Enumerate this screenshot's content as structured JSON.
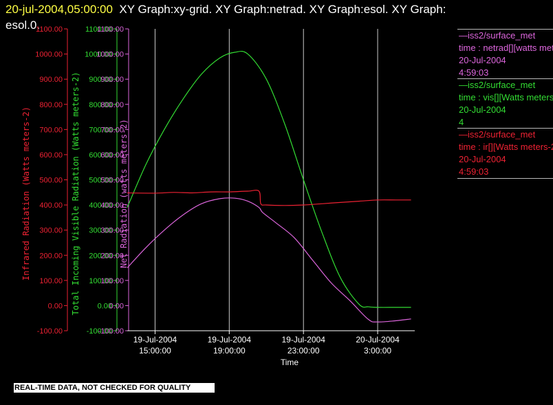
{
  "header": {
    "timestamp": "20-jul-2004,05:00:00",
    "graph_titles": "XY Graph:xy-grid.  XY Graph:netrad.  XY Graph:esol.  XY Graph:",
    "graph_titles_cont": "esol.0."
  },
  "legend": [
    {
      "source": "—iss2/surface_met",
      "variable": "time : netrad[][watts meters-2]",
      "date": "20-Jul-2004",
      "time": "4:59:03",
      "color": "#dd66dd"
    },
    {
      "source": "—iss2/surface_met",
      "variable": "time : vis[][Watts meters-2]",
      "date": "20-Jul-2004",
      "time": "4",
      "color": "#33dd33"
    },
    {
      "source": "—iss2/surface_met",
      "variable": "time : ir[][Watts meters-2]",
      "date": "20-Jul-2004",
      "time": "4:59:03",
      "color": "#ee2233"
    }
  ],
  "footer": {
    "text": "REAL-TIME DATA, NOT CHECKED FOR QUALITY"
  },
  "chart_data": {
    "type": "line",
    "xlabel": "Time",
    "x_ticks": [
      {
        "line1": "19-Jul-2004",
        "line2": "15:00:00",
        "hours": 0
      },
      {
        "line1": "19-Jul-2004",
        "line2": "19:00:00",
        "hours": 4
      },
      {
        "line1": "19-Jul-2004",
        "line2": "23:00:00",
        "hours": 8
      },
      {
        "line1": "20-Jul-2004",
        "line2": "3:00:00",
        "hours": 12
      }
    ],
    "xlim_hours": [
      -1.5,
      14.0
    ],
    "xlim_time": [
      "19-Jul-2004 13:30:00",
      "20-Jul-2004 5:00:00"
    ],
    "ylim": [
      -100,
      1100
    ],
    "y_ticks": [
      "-100.00",
      "0.00",
      "100.00",
      "200.00",
      "300.00",
      "400.00",
      "500.00",
      "600.00",
      "700.00",
      "800.00",
      "900.00",
      "1000.00",
      "1100.00"
    ],
    "axes": [
      {
        "label": "Infrared Radiation (Watts meters-2)",
        "color": "#ee2233"
      },
      {
        "label": "Total Incoming Visible Radiation (Watts meters-2)",
        "color": "#33dd33"
      },
      {
        "label": "Net Radiation (watts meters-2)",
        "color": "#dd66dd"
      }
    ],
    "grid": "vertical lines at x ticks",
    "series": [
      {
        "name": "time : vis[][Watts meters-2]",
        "color": "#33dd33",
        "x_hours": [
          -1.5,
          -0.5,
          0.5,
          1.5,
          2.5,
          3.5,
          4.3,
          5.0,
          6.0,
          7.0,
          8.0,
          9.0,
          10.0,
          11.0,
          11.5,
          12.0,
          13.0,
          13.8
        ],
        "values": [
          390,
          560,
          700,
          820,
          920,
          985,
          1007,
          1000,
          900,
          720,
          500,
          290,
          110,
          5,
          -5,
          -7,
          -7,
          -7
        ]
      },
      {
        "name": "time : ir[][Watts meters-2]",
        "color": "#ee2233",
        "x_hours": [
          -1.5,
          0.0,
          1.0,
          2.0,
          3.0,
          4.0,
          5.0,
          5.6,
          5.7,
          6.0,
          7.0,
          8.0,
          9.0,
          10.0,
          11.0,
          12.0,
          13.0,
          13.8
        ],
        "values": [
          448,
          447,
          450,
          448,
          452,
          452,
          455,
          455,
          405,
          400,
          398,
          400,
          405,
          410,
          415,
          420,
          420,
          420
        ]
      },
      {
        "name": "time : netrad[][watts meters-2]",
        "color": "#dd66dd",
        "x_hours": [
          -1.5,
          -0.5,
          0.5,
          1.5,
          2.5,
          3.5,
          4.3,
          5.0,
          5.6,
          5.8,
          6.5,
          7.5,
          8.5,
          9.5,
          10.5,
          11.5,
          12.0,
          13.0,
          13.8
        ],
        "values": [
          150,
          230,
          300,
          360,
          405,
          425,
          427,
          415,
          390,
          370,
          330,
          270,
          180,
          90,
          20,
          -55,
          -65,
          -60,
          -53
        ]
      }
    ]
  }
}
